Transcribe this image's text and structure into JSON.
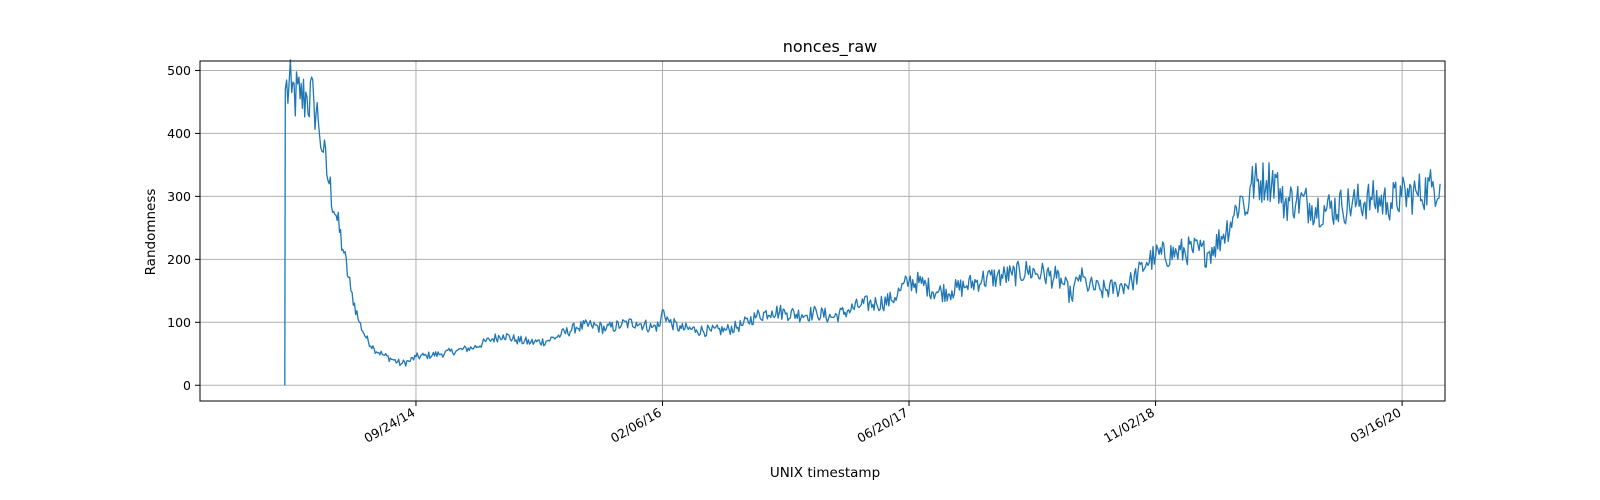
{
  "chart_data": {
    "type": "line",
    "title": "nonces_raw",
    "xlabel": "UNIX timestamp",
    "ylabel": "Randomness",
    "grid": true,
    "legend": "none",
    "color": "#1f77b4",
    "xlim": [
      "2013-07-13",
      "2020-06-11"
    ],
    "ylim": [
      -25,
      515
    ],
    "y_ticks": [
      0,
      100,
      200,
      300,
      400,
      500
    ],
    "x_ticks": [
      {
        "date": "2014-09-24",
        "label": "09/24/14"
      },
      {
        "date": "2016-02-06",
        "label": "02/06/16"
      },
      {
        "date": "2017-06-20",
        "label": "06/20/17"
      },
      {
        "date": "2018-11-02",
        "label": "11/02/18"
      },
      {
        "date": "2020-03-16",
        "label": "03/16/20"
      }
    ],
    "series": [
      {
        "points": [
          [
            "2014-01-01",
            0
          ],
          [
            "2014-01-02",
            470
          ],
          [
            "2014-01-15",
            465
          ],
          [
            "2014-02-01",
            455
          ],
          [
            "2014-02-15",
            458
          ],
          [
            "2014-03-01",
            450
          ],
          [
            "2014-03-10",
            420
          ],
          [
            "2014-03-20",
            370
          ],
          [
            "2014-04-01",
            320
          ],
          [
            "2014-04-15",
            270
          ],
          [
            "2014-05-01",
            210
          ],
          [
            "2014-05-15",
            150
          ],
          [
            "2014-06-01",
            100
          ],
          [
            "2014-06-15",
            75
          ],
          [
            "2014-07-01",
            58
          ],
          [
            "2014-07-20",
            48
          ],
          [
            "2014-08-10",
            40
          ],
          [
            "2014-08-25",
            34
          ],
          [
            "2014-09-10",
            38
          ],
          [
            "2014-09-24",
            45
          ],
          [
            "2014-10-15",
            47
          ],
          [
            "2014-11-15",
            50
          ],
          [
            "2014-12-15",
            55
          ],
          [
            "2015-01-20",
            60
          ],
          [
            "2015-02-20",
            72
          ],
          [
            "2015-03-20",
            80
          ],
          [
            "2015-04-15",
            72
          ],
          [
            "2015-05-15",
            68
          ],
          [
            "2015-06-15",
            70
          ],
          [
            "2015-07-15",
            80
          ],
          [
            "2015-08-15",
            92
          ],
          [
            "2015-09-15",
            95
          ],
          [
            "2015-10-15",
            90
          ],
          [
            "2015-11-15",
            96
          ],
          [
            "2015-12-15",
            100
          ],
          [
            "2016-01-15",
            92
          ],
          [
            "2016-02-01",
            95
          ],
          [
            "2016-02-06",
            120
          ],
          [
            "2016-02-20",
            100
          ],
          [
            "2016-03-15",
            90
          ],
          [
            "2016-04-15",
            88
          ],
          [
            "2016-05-15",
            86
          ],
          [
            "2016-06-15",
            88
          ],
          [
            "2016-07-15",
            95
          ],
          [
            "2016-08-15",
            110
          ],
          [
            "2016-09-15",
            118
          ],
          [
            "2016-10-15",
            115
          ],
          [
            "2016-11-15",
            112
          ],
          [
            "2016-12-15",
            115
          ],
          [
            "2017-01-15",
            108
          ],
          [
            "2017-02-15",
            118
          ],
          [
            "2017-03-15",
            128
          ],
          [
            "2017-04-15",
            130
          ],
          [
            "2017-05-15",
            135
          ],
          [
            "2017-06-01",
            150
          ],
          [
            "2017-06-20",
            165
          ],
          [
            "2017-07-15",
            162
          ],
          [
            "2017-08-15",
            148
          ],
          [
            "2017-09-15",
            150
          ],
          [
            "2017-10-15",
            158
          ],
          [
            "2017-11-15",
            168
          ],
          [
            "2017-12-15",
            172
          ],
          [
            "2018-01-15",
            175
          ],
          [
            "2018-02-15",
            182
          ],
          [
            "2018-03-15",
            178
          ],
          [
            "2018-04-15",
            170
          ],
          [
            "2018-05-01",
            160
          ],
          [
            "2018-05-15",
            140
          ],
          [
            "2018-06-01",
            175
          ],
          [
            "2018-06-15",
            160
          ],
          [
            "2018-07-15",
            150
          ],
          [
            "2018-08-15",
            155
          ],
          [
            "2018-09-15",
            165
          ],
          [
            "2018-10-15",
            195
          ],
          [
            "2018-11-02",
            205
          ],
          [
            "2018-12-15",
            210
          ],
          [
            "2019-01-15",
            215
          ],
          [
            "2019-02-15",
            210
          ],
          [
            "2019-03-01",
            220
          ],
          [
            "2019-03-20",
            240
          ],
          [
            "2019-04-10",
            270
          ],
          [
            "2019-04-25",
            300
          ],
          [
            "2019-05-05",
            275
          ],
          [
            "2019-05-15",
            320
          ],
          [
            "2019-06-15",
            325
          ],
          [
            "2019-07-05",
            330
          ],
          [
            "2019-07-15",
            290
          ],
          [
            "2019-08-15",
            295
          ],
          [
            "2019-09-15",
            285
          ],
          [
            "2019-10-15",
            280
          ],
          [
            "2019-11-15",
            285
          ],
          [
            "2019-12-15",
            290
          ],
          [
            "2020-01-15",
            295
          ],
          [
            "2020-02-15",
            290
          ],
          [
            "2020-03-15",
            300
          ],
          [
            "2020-04-15",
            305
          ],
          [
            "2020-05-15",
            315
          ],
          [
            "2020-06-01",
            320
          ]
        ]
      }
    ]
  }
}
